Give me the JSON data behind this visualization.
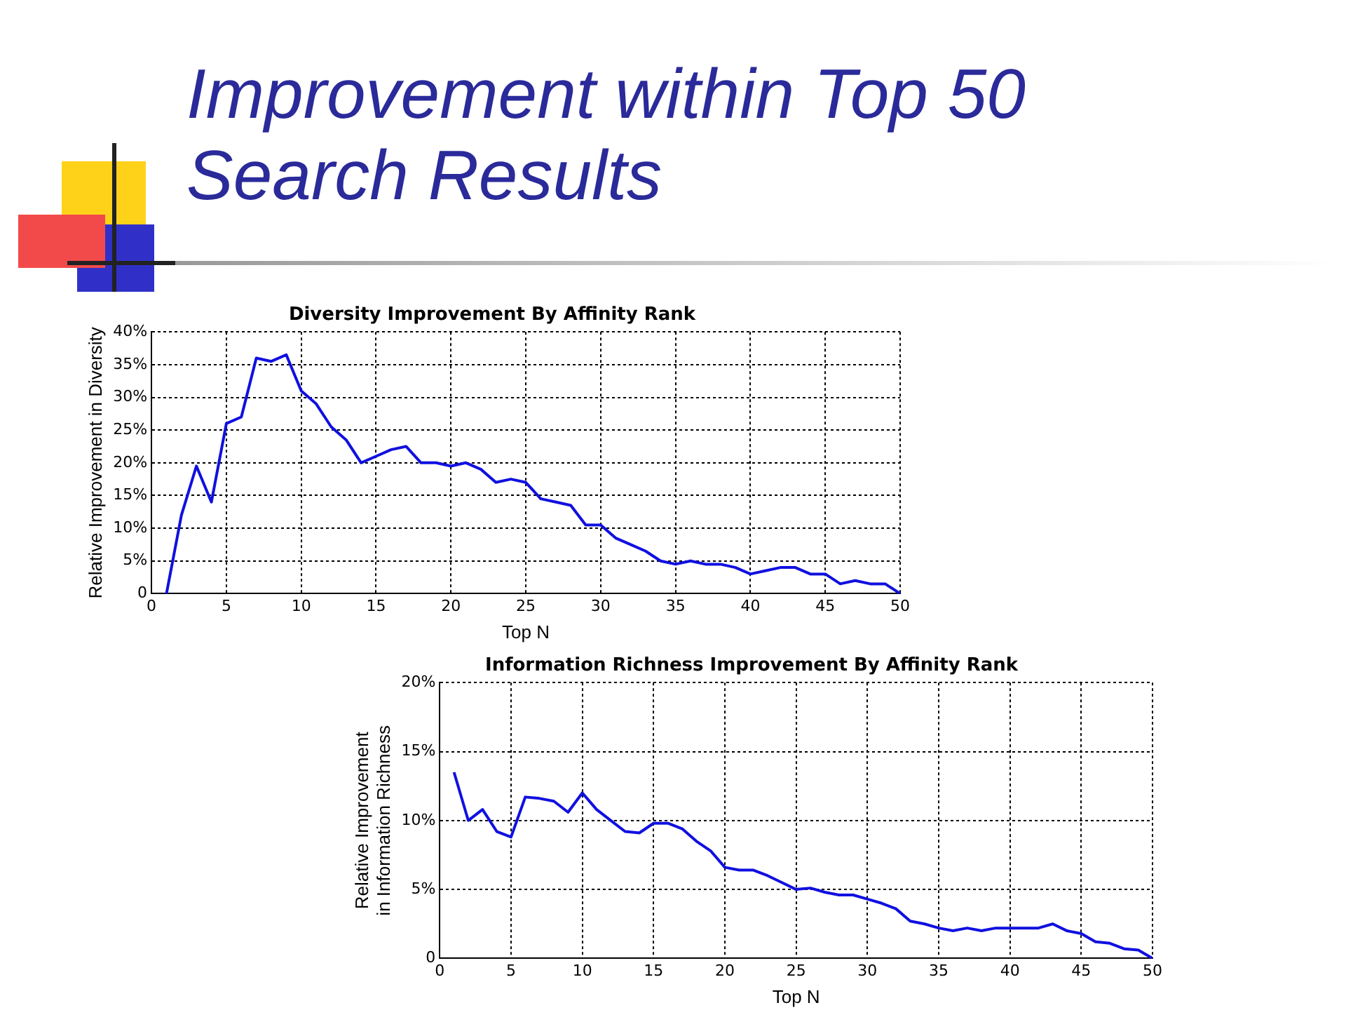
{
  "chart_data": [
    {
      "type": "line",
      "title": "Diversity Improvement By Affinity Rank",
      "xlabel": "Top N",
      "ylabel": "Relative Improvement in Diversity",
      "annotations": [
        "Improvement within Top 50 Search Results"
      ],
      "x": [
        1,
        2,
        3,
        4,
        5,
        6,
        7,
        8,
        9,
        10,
        11,
        12,
        13,
        14,
        15,
        16,
        17,
        18,
        19,
        20,
        21,
        22,
        23,
        24,
        25,
        26,
        27,
        28,
        29,
        30,
        31,
        32,
        33,
        34,
        35,
        36,
        37,
        38,
        39,
        40,
        41,
        42,
        43,
        44,
        45,
        46,
        47,
        48,
        49,
        50
      ],
      "series": [
        {
          "color": "#1010e0",
          "values": [
            0,
            12,
            19.5,
            14,
            26,
            27,
            36,
            35.5,
            36.5,
            31,
            29,
            25.5,
            23.5,
            20,
            21,
            22,
            22.5,
            20,
            20,
            19.5,
            20,
            19,
            17,
            17.5,
            17,
            14.5,
            14,
            13.5,
            10.5,
            10.5,
            8.5,
            7.5,
            6.5,
            5,
            4.5,
            5,
            4.5,
            4.5,
            4,
            3,
            3.5,
            4,
            4,
            3,
            3,
            1.5,
            2,
            1.5,
            1.5,
            0
          ]
        }
      ],
      "xlim": [
        0,
        50
      ],
      "xticks": [
        0,
        5,
        10,
        15,
        20,
        25,
        30,
        35,
        40,
        45,
        50
      ],
      "ylim": [
        0,
        40
      ],
      "yticks": [
        0,
        {
          "value": 5,
          "label": "5%"
        },
        {
          "value": 10,
          "label": "10%"
        },
        {
          "value": 15,
          "label": "15%"
        },
        {
          "value": 20,
          "label": "20%"
        },
        {
          "value": 25,
          "label": "25%"
        },
        {
          "value": 30,
          "label": "30%"
        },
        {
          "value": 35,
          "label": "35%"
        },
        {
          "value": 40,
          "label": "40%"
        }
      ],
      "grid": true,
      "legend": false,
      "marker": "none",
      "line_style": "solid"
    },
    {
      "type": "line",
      "title": "Information Richness Improvement By Affinity Rank",
      "xlabel": "Top N",
      "ylabel": "Relative Improvement\nin Information Richness",
      "x": [
        1,
        2,
        3,
        4,
        5,
        6,
        7,
        8,
        9,
        10,
        11,
        12,
        13,
        14,
        15,
        16,
        17,
        18,
        19,
        20,
        21,
        22,
        23,
        24,
        25,
        26,
        27,
        28,
        29,
        30,
        31,
        32,
        33,
        34,
        35,
        36,
        37,
        38,
        39,
        40,
        41,
        42,
        43,
        44,
        45,
        46,
        47,
        48,
        49,
        50
      ],
      "series": [
        {
          "color": "#1010e0",
          "values": [
            13.5,
            10,
            10.8,
            9.2,
            8.8,
            11.7,
            11.6,
            11.4,
            10.6,
            12,
            10.8,
            10,
            9.2,
            9.1,
            9.8,
            9.8,
            9.4,
            8.5,
            7.8,
            6.6,
            6.4,
            6.4,
            6,
            5.5,
            5,
            5.1,
            4.8,
            4.6,
            4.6,
            4.3,
            4,
            3.6,
            2.7,
            2.5,
            2.2,
            2,
            2.2,
            2,
            2.2,
            2.2,
            2.2,
            2.2,
            2.5,
            2,
            1.8,
            1.2,
            1.1,
            0.7,
            0.6,
            0
          ]
        }
      ],
      "xlim": [
        0,
        50
      ],
      "xticks": [
        0,
        5,
        10,
        15,
        20,
        25,
        30,
        35,
        40,
        45,
        50
      ],
      "ylim": [
        0,
        20
      ],
      "yticks": [
        0,
        {
          "value": 5,
          "label": "5%"
        },
        {
          "value": 10,
          "label": "10%"
        },
        {
          "value": 15,
          "label": "15%"
        },
        {
          "value": 20,
          "label": "20%"
        }
      ],
      "grid": true,
      "legend": false,
      "marker": "none",
      "line_style": "solid"
    }
  ]
}
